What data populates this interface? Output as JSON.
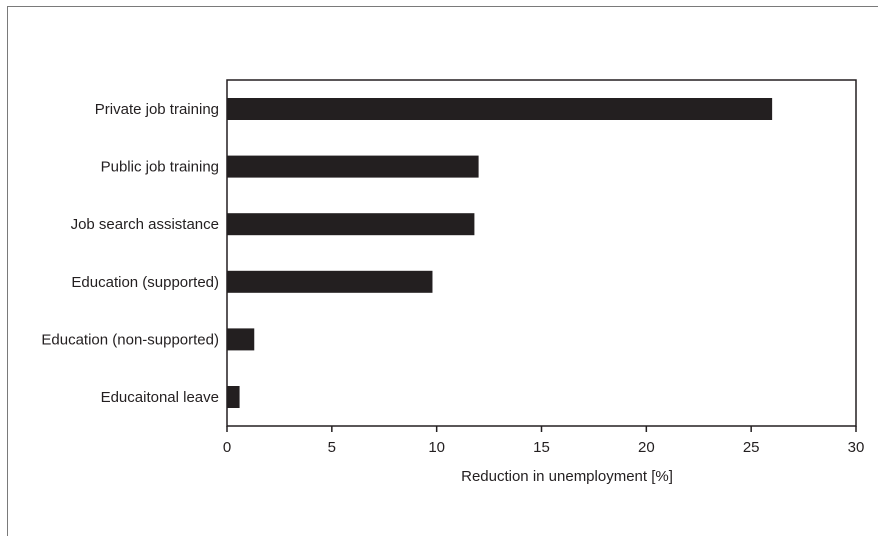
{
  "chart_data": {
    "type": "bar",
    "orientation": "horizontal",
    "categories": [
      "Private job training",
      "Public job training",
      "Job search assistance",
      "Education (supported)",
      "Education (non-supported)",
      "Educaitonal leave"
    ],
    "values": [
      26.0,
      12.0,
      11.8,
      9.8,
      1.3,
      0.6
    ],
    "xlabel": "Reduction in unemployment [%]",
    "ylabel": "",
    "xlim": [
      0,
      30
    ],
    "xticks": [
      "0",
      "5",
      "10",
      "15",
      "20",
      "25",
      "30"
    ],
    "grid": false,
    "bar_color": "#231f20"
  }
}
